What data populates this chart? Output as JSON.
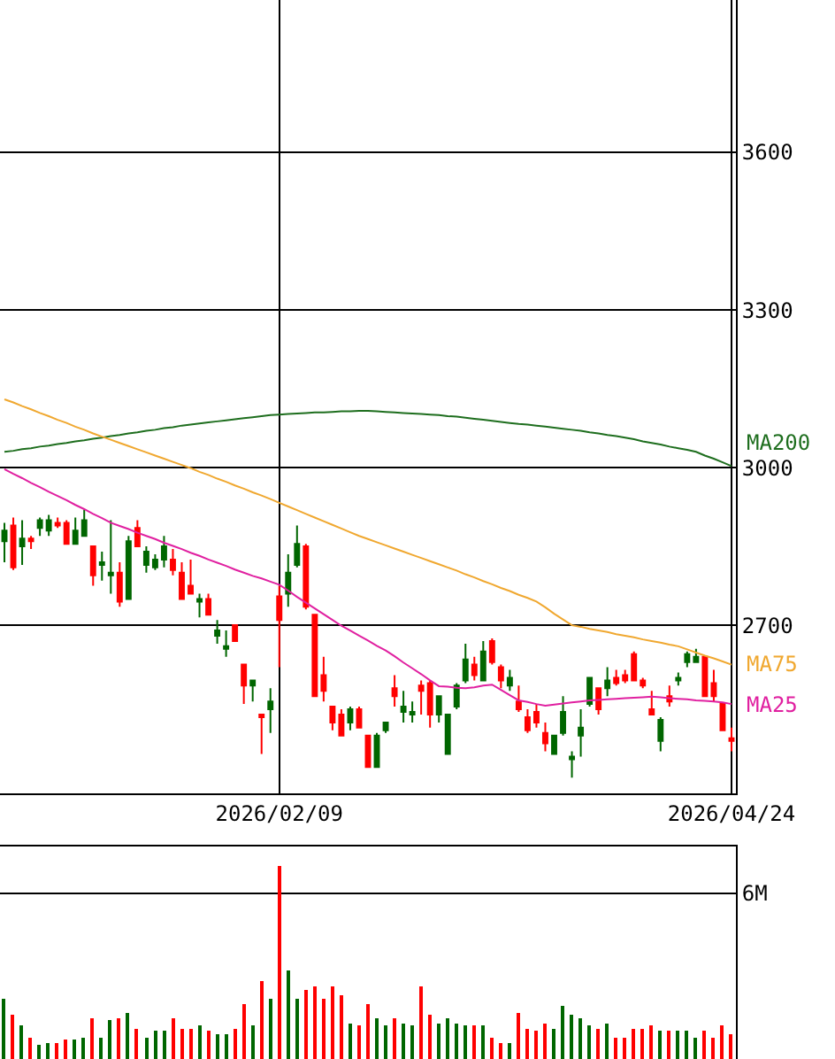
{
  "chart_data": [
    {
      "type": "candlestick",
      "categories": [
        null,
        null,
        null,
        null,
        null,
        null,
        null,
        null,
        null,
        null,
        null,
        null,
        null,
        null,
        null,
        null,
        null,
        null,
        null,
        null,
        null,
        null,
        null,
        null,
        null,
        null,
        null,
        null,
        null,
        null,
        null,
        "2026/02/09",
        null,
        null,
        null,
        null,
        null,
        null,
        null,
        null,
        null,
        null,
        null,
        null,
        null,
        null,
        null,
        null,
        null,
        null,
        null,
        null,
        null,
        null,
        null,
        null,
        null,
        null,
        null,
        null,
        null,
        null,
        null,
        null,
        null,
        null,
        null,
        null,
        null,
        null,
        null,
        null,
        null,
        null,
        null,
        null,
        null,
        null,
        null,
        null,
        null,
        null,
        "2026/04/24"
      ],
      "ohlc": [
        [
          2860,
          2895,
          2820,
          2880
        ],
        [
          2890,
          2905,
          2805,
          2810
        ],
        [
          2850,
          2900,
          2815,
          2865
        ],
        [
          2865,
          2870,
          2845,
          2860
        ],
        [
          2885,
          2905,
          2870,
          2900
        ],
        [
          2880,
          2910,
          2870,
          2900
        ],
        [
          2895,
          2905,
          2885,
          2890
        ],
        [
          2895,
          2900,
          2855,
          2855
        ],
        [
          2855,
          2905,
          2855,
          2880
        ],
        [
          2870,
          2920,
          2870,
          2900
        ],
        [
          2850,
          2850,
          2775,
          2795
        ],
        [
          2815,
          2840,
          2785,
          2820
        ],
        [
          2795,
          2900,
          2760,
          2800
        ],
        [
          2800,
          2820,
          2735,
          2745
        ],
        [
          2750,
          2870,
          2750,
          2860
        ],
        [
          2885,
          2900,
          2850,
          2850
        ],
        [
          2815,
          2850,
          2800,
          2840
        ],
        [
          2810,
          2835,
          2805,
          2825
        ],
        [
          2825,
          2870,
          2810,
          2850
        ],
        [
          2825,
          2845,
          2795,
          2805
        ],
        [
          2800,
          2820,
          2750,
          2750
        ],
        [
          2775,
          2825,
          2760,
          2760
        ],
        [
          2745,
          2760,
          2715,
          2750
        ],
        [
          2750,
          2760,
          2720,
          2720
        ],
        [
          2680,
          2710,
          2665,
          2690
        ],
        [
          2655,
          2690,
          2640,
          2660
        ],
        [
          2700,
          2700,
          2670,
          2670
        ],
        [
          2625,
          2625,
          2550,
          2585
        ],
        [
          2585,
          2595,
          2555,
          2595
        ],
        [
          2530,
          2530,
          2455,
          2525
        ],
        [
          2540,
          2580,
          2495,
          2555
        ],
        [
          2755,
          2775,
          2620,
          2710
        ],
        [
          2760,
          2835,
          2735,
          2800
        ],
        [
          2815,
          2890,
          2810,
          2855
        ],
        [
          2850,
          2855,
          2730,
          2735
        ],
        [
          2720,
          2720,
          2565,
          2565
        ],
        [
          2605,
          2640,
          2555,
          2575
        ],
        [
          2545,
          2545,
          2500,
          2515
        ],
        [
          2530,
          2540,
          2490,
          2490
        ],
        [
          2515,
          2545,
          2500,
          2540
        ],
        [
          2540,
          2545,
          2505,
          2505
        ],
        [
          2490,
          2490,
          2430,
          2430
        ],
        [
          2430,
          2495,
          2430,
          2490
        ],
        [
          2500,
          2515,
          2495,
          2515
        ],
        [
          2580,
          2605,
          2545,
          2565
        ],
        [
          2535,
          2575,
          2515,
          2545
        ],
        [
          2530,
          2555,
          2515,
          2535
        ],
        [
          2585,
          2595,
          2530,
          2575
        ],
        [
          2590,
          2595,
          2505,
          2530
        ],
        [
          2530,
          2565,
          2515,
          2565
        ],
        [
          2455,
          2530,
          2455,
          2530
        ],
        [
          2545,
          2590,
          2540,
          2585
        ],
        [
          2595,
          2665,
          2590,
          2635
        ],
        [
          2625,
          2640,
          2595,
          2605
        ],
        [
          2595,
          2670,
          2595,
          2650
        ],
        [
          2670,
          2675,
          2625,
          2630
        ],
        [
          2620,
          2625,
          2580,
          2595
        ],
        [
          2585,
          2615,
          2575,
          2600
        ],
        [
          2555,
          2585,
          2535,
          2540
        ],
        [
          2525,
          2540,
          2495,
          2500
        ],
        [
          2535,
          2550,
          2505,
          2515
        ],
        [
          2495,
          2515,
          2460,
          2475
        ],
        [
          2455,
          2490,
          2455,
          2490
        ],
        [
          2495,
          2565,
          2490,
          2535
        ],
        [
          2445,
          2460,
          2410,
          2450
        ],
        [
          2490,
          2540,
          2450,
          2505
        ],
        [
          2550,
          2600,
          2545,
          2600
        ],
        [
          2580,
          2580,
          2530,
          2540
        ],
        [
          2580,
          2620,
          2565,
          2595
        ],
        [
          2600,
          2615,
          2585,
          2590
        ],
        [
          2605,
          2615,
          2590,
          2595
        ],
        [
          2645,
          2650,
          2595,
          2595
        ],
        [
          2595,
          2600,
          2580,
          2585
        ],
        [
          2540,
          2575,
          2530,
          2530
        ],
        [
          2480,
          2525,
          2460,
          2520
        ],
        [
          2565,
          2585,
          2545,
          2555
        ],
        [
          2595,
          2610,
          2585,
          2600
        ],
        [
          2630,
          2650,
          2620,
          2645
        ],
        [
          2630,
          2655,
          2630,
          2640
        ],
        [
          2640,
          2640,
          2565,
          2565
        ],
        [
          2590,
          2615,
          2555,
          2565
        ],
        [
          2550,
          2550,
          2500,
          2500
        ],
        [
          2485,
          2505,
          2460,
          2480
        ]
      ],
      "colors": [
        "#006600",
        "#ff0000",
        "#006600",
        "#ff0000",
        "#006600",
        "#006600",
        "#ff0000",
        "#ff0000",
        "#006600",
        "#006600",
        "#ff0000",
        "#006600",
        "#006600",
        "#ff0000",
        "#006600",
        "#ff0000",
        "#006600",
        "#006600",
        "#006600",
        "#ff0000",
        "#ff0000",
        "#ff0000",
        "#006600",
        "#ff0000",
        "#006600",
        "#006600",
        "#ff0000",
        "#ff0000",
        "#006600",
        "#ff0000",
        "#006600",
        "#ff0000",
        "#006600",
        "#006600",
        "#ff0000",
        "#ff0000",
        "#ff0000",
        "#ff0000",
        "#ff0000",
        "#006600",
        "#ff0000",
        "#ff0000",
        "#006600",
        "#006600",
        "#ff0000",
        "#006600",
        "#006600",
        "#ff0000",
        "#ff0000",
        "#006600",
        "#006600",
        "#006600",
        "#006600",
        "#ff0000",
        "#006600",
        "#ff0000",
        "#ff0000",
        "#006600",
        "#ff0000",
        "#ff0000",
        "#ff0000",
        "#ff0000",
        "#006600",
        "#006600",
        "#006600",
        "#006600",
        "#006600",
        "#ff0000",
        "#006600",
        "#ff0000",
        "#ff0000",
        "#ff0000",
        "#ff0000",
        "#ff0000",
        "#006600",
        "#ff0000",
        "#006600",
        "#006600",
        "#006600",
        "#ff0000",
        "#ff0000",
        "#ff0000",
        "#ff0000"
      ],
      "series": [
        {
          "name": "MA200",
          "type": "line",
          "color": "#1e6e1e",
          "values": [
            3030,
            3032,
            3035,
            3037,
            3040,
            3042,
            3045,
            3047,
            3050,
            3052,
            3055,
            3057,
            3060,
            3062,
            3065,
            3067,
            3070,
            3072,
            3075,
            3077,
            3080,
            3082,
            3084,
            3086,
            3088,
            3090,
            3092,
            3094,
            3096,
            3098,
            3100,
            3101,
            3102,
            3103,
            3104,
            3105,
            3105,
            3106,
            3107,
            3107,
            3108,
            3108,
            3107,
            3106,
            3105,
            3104,
            3103,
            3102,
            3101,
            3100,
            3098,
            3097,
            3095,
            3093,
            3091,
            3089,
            3087,
            3085,
            3083,
            3082,
            3080,
            3078,
            3076,
            3074,
            3072,
            3070,
            3067,
            3065,
            3062,
            3060,
            3057,
            3054,
            3050,
            3047,
            3044,
            3040,
            3037,
            3034,
            3030,
            3023,
            3017,
            3010,
            3003
          ]
        },
        {
          "name": "MA75",
          "type": "line",
          "color": "#f0a830",
          "values": [
            3130,
            3124,
            3117,
            3111,
            3104,
            3098,
            3091,
            3085,
            3078,
            3072,
            3065,
            3059,
            3053,
            3047,
            3041,
            3035,
            3029,
            3023,
            3017,
            3011,
            3005,
            2999,
            2992,
            2986,
            2979,
            2973,
            2966,
            2960,
            2953,
            2947,
            2940,
            2933,
            2926,
            2919,
            2912,
            2905,
            2898,
            2891,
            2884,
            2877,
            2870,
            2864,
            2858,
            2852,
            2846,
            2840,
            2834,
            2828,
            2822,
            2816,
            2810,
            2804,
            2797,
            2791,
            2784,
            2778,
            2771,
            2765,
            2758,
            2752,
            2745,
            2734,
            2722,
            2711,
            2700,
            2697,
            2693,
            2690,
            2687,
            2683,
            2680,
            2677,
            2673,
            2670,
            2667,
            2663,
            2660,
            2654,
            2648,
            2642,
            2637,
            2631,
            2625
          ]
        },
        {
          "name": "MA25",
          "type": "line",
          "color": "#e020a0",
          "values": [
            2997,
            2988,
            2980,
            2971,
            2963,
            2954,
            2946,
            2938,
            2929,
            2921,
            2912,
            2904,
            2895,
            2889,
            2883,
            2876,
            2870,
            2864,
            2857,
            2851,
            2845,
            2838,
            2832,
            2825,
            2819,
            2813,
            2806,
            2800,
            2794,
            2789,
            2783,
            2777,
            2766,
            2754,
            2743,
            2732,
            2721,
            2710,
            2699,
            2690,
            2680,
            2671,
            2661,
            2652,
            2641,
            2629,
            2618,
            2607,
            2595,
            2584,
            2583,
            2581,
            2580,
            2582,
            2585,
            2587,
            2577,
            2567,
            2557,
            2554,
            2550,
            2547,
            2549,
            2551,
            2553,
            2555,
            2557,
            2558,
            2559,
            2560,
            2561,
            2562,
            2563,
            2564,
            2563,
            2561,
            2560,
            2559,
            2557,
            2556,
            2555,
            2553,
            2550
          ]
        }
      ],
      "ylim": [
        2380,
        3890
      ],
      "yticks": [
        2700,
        3000,
        3300,
        3600
      ],
      "grid": true
    },
    {
      "type": "bar",
      "categories": [
        null,
        null,
        null,
        null,
        null,
        null,
        null,
        null,
        null,
        null,
        null,
        null,
        null,
        null,
        null,
        null,
        null,
        null,
        null,
        null,
        null,
        null,
        null,
        null,
        null,
        null,
        null,
        null,
        null,
        null,
        null,
        "2026/02/09",
        null,
        null,
        null,
        null,
        null,
        null,
        null,
        null,
        null,
        null,
        null,
        null,
        null,
        null,
        null,
        null,
        null,
        null,
        null,
        null,
        null,
        null,
        null,
        null,
        null,
        null,
        null,
        null,
        null,
        null,
        null,
        null,
        null,
        null,
        null,
        null,
        null,
        null,
        null,
        null,
        null,
        null,
        null,
        null,
        null,
        null,
        null,
        null,
        null,
        null,
        "2026/04/24"
      ],
      "values": [
        2.2,
        1.6,
        1.2,
        0.8,
        0.5,
        0.6,
        0.6,
        0.7,
        0.7,
        0.8,
        1.5,
        0.8,
        1.4,
        1.5,
        1.7,
        1.1,
        0.8,
        1.0,
        1.0,
        1.5,
        1.1,
        1.1,
        1.2,
        1.0,
        0.9,
        0.9,
        1.1,
        2.0,
        1.2,
        2.8,
        2.2,
        7.0,
        3.2,
        2.2,
        2.5,
        2.6,
        2.2,
        2.6,
        2.3,
        1.3,
        1.2,
        2.0,
        1.5,
        1.2,
        1.5,
        1.3,
        1.2,
        2.6,
        1.6,
        1.3,
        1.5,
        1.3,
        1.2,
        1.2,
        1.2,
        0.8,
        0.6,
        0.6,
        1.7,
        1.1,
        1.0,
        1.3,
        1.1,
        1.9,
        1.6,
        1.5,
        1.2,
        1.1,
        1.3,
        0.8,
        0.8,
        1.1,
        1.1,
        1.2,
        1.0,
        1.0,
        1.0,
        1.0,
        0.8,
        1.0,
        0.8,
        1.2,
        0.9
      ],
      "colors": [
        "#006600",
        "#ff0000",
        "#006600",
        "#ff0000",
        "#006600",
        "#006600",
        "#ff0000",
        "#ff0000",
        "#006600",
        "#006600",
        "#ff0000",
        "#006600",
        "#006600",
        "#ff0000",
        "#006600",
        "#ff0000",
        "#006600",
        "#006600",
        "#006600",
        "#ff0000",
        "#ff0000",
        "#ff0000",
        "#006600",
        "#ff0000",
        "#006600",
        "#006600",
        "#ff0000",
        "#ff0000",
        "#006600",
        "#ff0000",
        "#006600",
        "#ff0000",
        "#006600",
        "#006600",
        "#ff0000",
        "#ff0000",
        "#ff0000",
        "#ff0000",
        "#ff0000",
        "#006600",
        "#ff0000",
        "#ff0000",
        "#006600",
        "#006600",
        "#ff0000",
        "#006600",
        "#006600",
        "#ff0000",
        "#ff0000",
        "#006600",
        "#006600",
        "#006600",
        "#006600",
        "#ff0000",
        "#006600",
        "#ff0000",
        "#ff0000",
        "#006600",
        "#ff0000",
        "#ff0000",
        "#ff0000",
        "#ff0000",
        "#006600",
        "#006600",
        "#006600",
        "#006600",
        "#006600",
        "#ff0000",
        "#006600",
        "#ff0000",
        "#ff0000",
        "#ff0000",
        "#ff0000",
        "#ff0000",
        "#006600",
        "#ff0000",
        "#006600",
        "#006600",
        "#006600",
        "#ff0000",
        "#ff0000",
        "#ff0000",
        "#ff0000"
      ],
      "ylim": [
        0,
        7.7
      ],
      "yticks": [
        {
          "value": 6,
          "label": "6M"
        }
      ],
      "grid": "y",
      "tick_labels": "y"
    }
  ]
}
